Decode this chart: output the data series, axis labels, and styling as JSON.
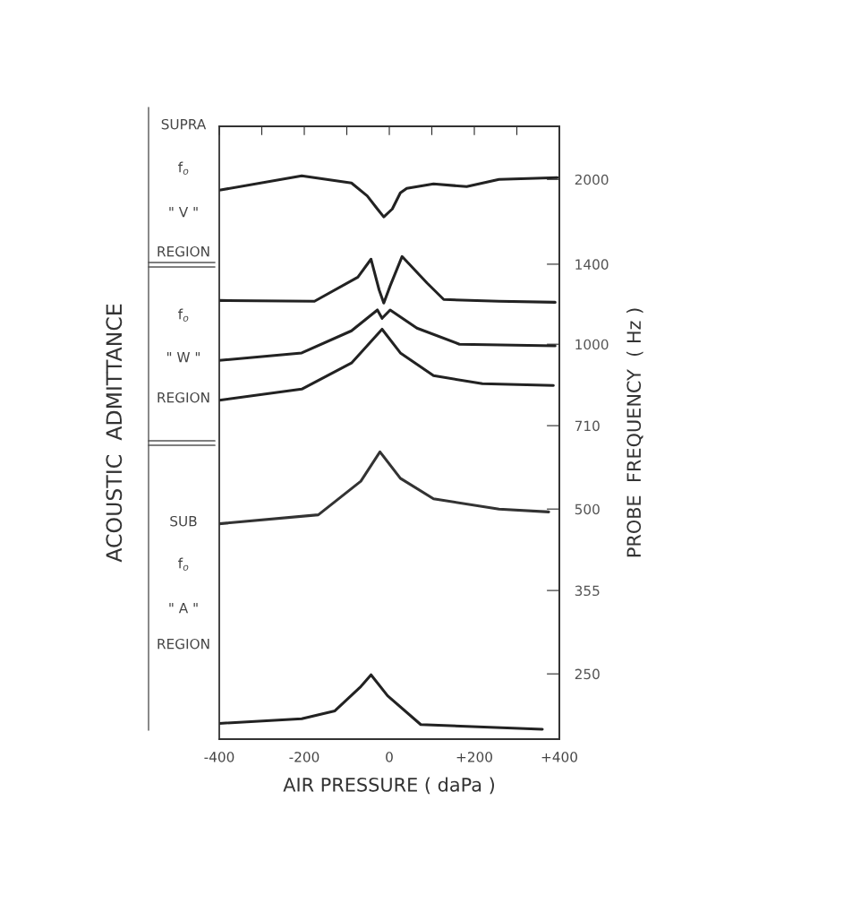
{
  "chart_data": {
    "type": "line",
    "xlabel": "AIR PRESSURE ( daPa )",
    "ylabel": "ACOUSTIC  ADMITTANCE",
    "y2label": "PROBE  FREQUENCY  ( Hz )",
    "xlim": [
      -400,
      400
    ],
    "xticks": [
      {
        "value": -400,
        "label": "-400"
      },
      {
        "value": -300,
        "label": null
      },
      {
        "value": -200,
        "label": "-200"
      },
      {
        "value": -100,
        "label": null
      },
      0,
      {
        "value": 100,
        "label": null
      },
      {
        "value": 200,
        "label": "+200"
      },
      {
        "value": 300,
        "label": null
      },
      {
        "value": 400,
        "label": "+400"
      }
    ],
    "log": "y2",
    "y2lim": [
      190,
      2500
    ],
    "y2ticks": [
      250,
      355,
      500,
      710,
      1000,
      1400,
      2000
    ],
    "grid": false,
    "marker": "none",
    "line_style": "solid",
    "annotations": [
      "SUPRA",
      "f$_{o}$",
      "\" V \"",
      "REGION",
      "f$_{o}$",
      "\" W \"",
      "REGION",
      "SUB",
      "f$_{o}$",
      "\" A \"",
      "REGION"
    ],
    "series": [
      {
        "axis": "y2",
        "color": "#222222",
        "x": [
          -400,
          -206,
          -89,
          -52,
          -28,
          -13,
          7,
          26,
          41,
          104,
          182,
          258,
          395
        ],
        "values": [
          1911,
          2030,
          1970,
          1866,
          1766,
          1708,
          1766,
          1890,
          1926,
          1963,
          1940,
          2000,
          2015
        ]
      },
      {
        "axis": "y2",
        "color": "#222222",
        "x": [
          -400,
          -176,
          -74,
          -43,
          -24,
          -13,
          2,
          30,
          89,
          128,
          258,
          390
        ],
        "values": [
          1202,
          1198,
          1326,
          1430,
          1257,
          1189,
          1278,
          1446,
          1293,
          1207,
          1198,
          1193
        ]
      },
      {
        "axis": "y2",
        "color": "#222222",
        "x": [
          -400,
          -206,
          -89,
          -28,
          -17,
          2,
          65,
          165,
          390
        ],
        "values": [
          934,
          964,
          1058,
          1155,
          1115,
          1155,
          1070,
          1000,
          993
        ]
      },
      {
        "axis": "y2",
        "color": "#222222",
        "x": [
          -400,
          -206,
          -89,
          -17,
          26,
          104,
          219,
          386
        ],
        "values": [
          790,
          828,
          924,
          1065,
          964,
          876,
          847,
          841
        ]
      },
      {
        "axis": "y2",
        "color": "#333333",
        "x": [
          -400,
          -167,
          -67,
          -22,
          26,
          104,
          258,
          375
        ],
        "values": [
          470,
          488,
          562,
          636,
          569,
          522,
          500,
          494
        ]
      },
      {
        "axis": "y2",
        "color": "#222222",
        "x": [
          -400,
          -206,
          -128,
          -67,
          -43,
          -4,
          74,
          360
        ],
        "values": [
          203,
          207,
          214,
          237,
          249,
          228,
          202,
          198
        ]
      }
    ]
  }
}
